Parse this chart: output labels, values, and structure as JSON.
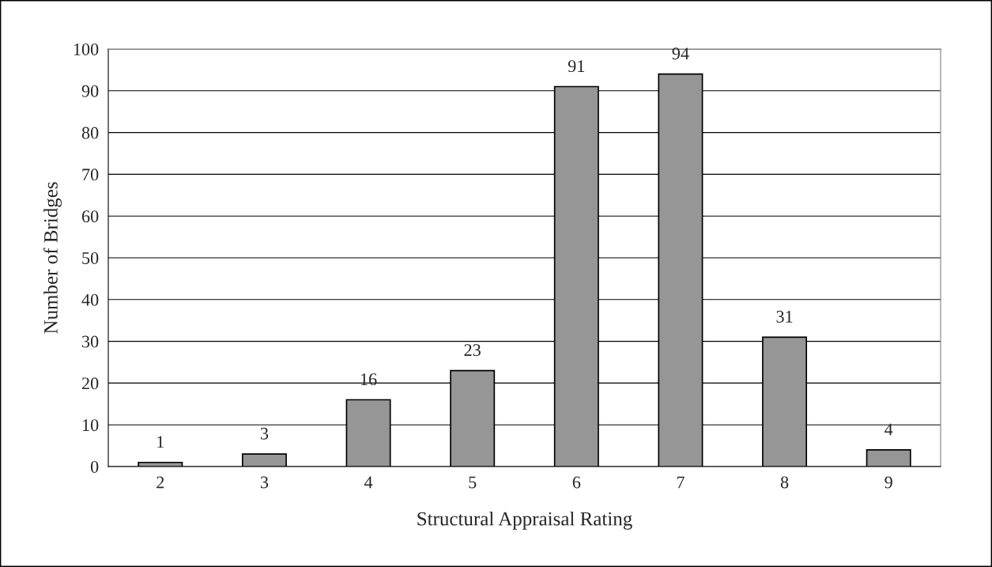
{
  "chart_data": {
    "type": "bar",
    "xlabel": "Structural Appraisal Rating",
    "ylabel": "Number of Bridges",
    "categories": [
      "2",
      "3",
      "4",
      "5",
      "6",
      "7",
      "8",
      "9"
    ],
    "values": [
      1,
      3,
      16,
      23,
      91,
      94,
      31,
      4
    ],
    "color": "#969696",
    "ylim": [
      0,
      100
    ],
    "yticks": [
      0,
      10,
      20,
      30,
      40,
      50,
      60,
      70,
      80,
      90,
      100
    ],
    "grid": "y",
    "data_labels": true
  }
}
